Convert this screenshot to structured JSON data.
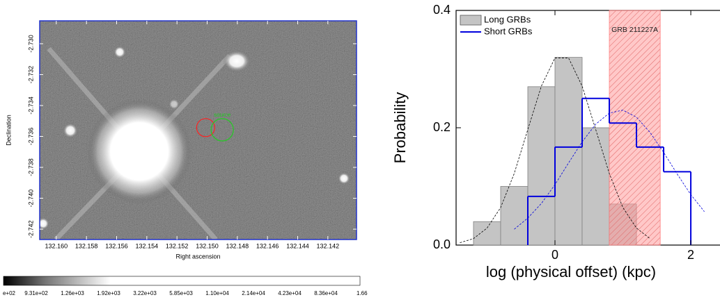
{
  "chart_data": [
    {
      "type": "image",
      "xlabel": "Right ascension",
      "ylabel": "Declination",
      "xlim": [
        132.1611,
        132.1401
      ],
      "ylim": [
        -2.74267,
        -2.72852
      ],
      "xticks": [
        {
          "value": 132.16,
          "label": "132.160"
        },
        {
          "value": 132.158,
          "label": "132.158"
        },
        {
          "value": 132.156,
          "label": "132.156"
        },
        {
          "value": 132.154,
          "label": "132.154"
        },
        {
          "value": 132.152,
          "label": "132.152"
        },
        {
          "value": 132.15,
          "label": "132.150"
        },
        {
          "value": 132.148,
          "label": "132.148"
        },
        {
          "value": 132.146,
          "label": "132.146"
        },
        {
          "value": 132.144,
          "label": "132.144"
        },
        {
          "value": 132.142,
          "label": "132.142"
        }
      ],
      "yticks": [
        {
          "value": -2.73,
          "label": "-2.730"
        },
        -2.732,
        -2.734,
        -2.736,
        -2.738,
        {
          "value": -2.74,
          "label": "-2.740"
        },
        -2.742
      ],
      "regions": [
        {
          "x": 132.1501,
          "y": -2.73543,
          "r": 0.0006,
          "color": "#ff2020"
        },
        {
          "label": "source",
          "x": 132.149,
          "y": -2.73557,
          "r": 0.00074,
          "color": "#22cc22"
        }
      ],
      "colorbar_labels": [
        "e+02",
        "9.31e+02",
        "1.26e+03",
        "1.92e+03",
        "3.22e+03",
        "5.85e+03",
        "1.10e+04",
        "2.14e+04",
        "4.23e+04",
        "8.36e+04",
        "1.66"
      ]
    },
    {
      "type": "histogram",
      "xlabel": "log (physical offset) (kpc)",
      "ylabel": "Probability",
      "xlim": [
        -1.456,
        2.43
      ],
      "ylim": [
        0,
        0.4
      ],
      "xticks": [
        0,
        2
      ],
      "yticks": [
        {
          "value": 0,
          "label": "0.0"
        },
        0.2,
        0.4
      ],
      "legend": "upper left",
      "series": [
        {
          "name": "Long GRBs",
          "color": "#c4c4c4",
          "style": "bar",
          "bins": [
            -1.2,
            -0.8,
            -0.4,
            0,
            0.4,
            0.8,
            1.2
          ],
          "values": [
            0.04,
            0.1,
            0.27,
            0.32,
            0.2,
            0.07
          ]
        },
        {
          "name": "Short GRBs",
          "color": "#0000dd",
          "style": "step",
          "bins": [
            -0.4,
            0,
            0.4,
            0.8,
            1.2,
            1.6,
            2.0
          ],
          "values": [
            0.083,
            0.167,
            0.25,
            0.208,
            0.167,
            0.125
          ]
        }
      ],
      "fits": [
        {
          "color": "#000000",
          "x": [
            -1.4,
            -1.2,
            -1.0,
            -0.8,
            -0.6,
            -0.4,
            -0.2,
            0,
            0.2,
            0.4,
            0.6,
            0.8,
            1.0,
            1.2,
            1.4
          ],
          "values": [
            0.004,
            0.011,
            0.029,
            0.064,
            0.122,
            0.197,
            0.271,
            0.319,
            0.319,
            0.271,
            0.197,
            0.122,
            0.064,
            0.029,
            0.011
          ]
        },
        {
          "color": "#0000dd",
          "x": [
            -0.6,
            -0.4,
            -0.2,
            0,
            0.2,
            0.4,
            0.6,
            0.8,
            1.0,
            1.2,
            1.4,
            1.6,
            1.8,
            2.0,
            2.2
          ],
          "values": [
            0.027,
            0.046,
            0.071,
            0.103,
            0.14,
            0.176,
            0.206,
            0.225,
            0.23,
            0.218,
            0.192,
            0.158,
            0.121,
            0.086,
            0.057
          ]
        }
      ],
      "band": {
        "label": "GRB 211227A",
        "xlim": [
          0.8,
          1.55
        ],
        "color": "#ff8080"
      }
    }
  ]
}
